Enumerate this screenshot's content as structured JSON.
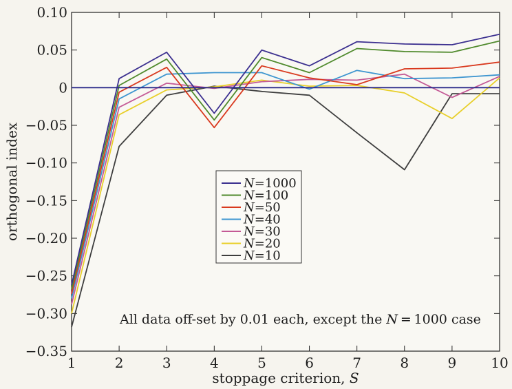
{
  "chart_data": {
    "type": "line",
    "title": "",
    "xlabel": "stoppage criterion, ",
    "xlabel_symbol": "S",
    "ylabel": "orthogonal index",
    "x": [
      1,
      2,
      3,
      4,
      5,
      6,
      7,
      8,
      9,
      10
    ],
    "xlim": [
      1,
      10
    ],
    "ylim": [
      -0.35,
      0.1
    ],
    "x_ticks": [
      "1",
      "2",
      "3",
      "4",
      "5",
      "6",
      "7",
      "8",
      "9",
      "10"
    ],
    "y_ticks": [
      {
        "value": 0.1,
        "label": "0.10"
      },
      {
        "value": 0.05,
        "label": "0.05"
      },
      {
        "value": 0,
        "label": "0"
      },
      {
        "value": -0.05,
        "label": "−0.05"
      },
      {
        "value": -0.1,
        "label": "−0.10"
      },
      {
        "value": -0.15,
        "label": "−0.15"
      },
      {
        "value": -0.2,
        "label": "−0.20"
      },
      {
        "value": -0.25,
        "label": "−0.25"
      },
      {
        "value": -0.3,
        "label": "−0.30"
      },
      {
        "value": -0.35,
        "label": "−0.35"
      }
    ],
    "grid": false,
    "legend_position": "center-left",
    "legend_symbol": "N",
    "series": [
      {
        "name": "=1000",
        "color": "#3b2f8f",
        "values": [
          -0.262,
          0.012,
          0.047,
          -0.034,
          0.05,
          0.029,
          0.061,
          0.058,
          0.057,
          0.071
        ]
      },
      {
        "name": "=100",
        "color": "#4f8a2c",
        "values": [
          -0.268,
          0.003,
          0.038,
          -0.043,
          0.04,
          0.02,
          0.052,
          0.048,
          0.047,
          0.062
        ]
      },
      {
        "name": "=50",
        "color": "#d9391e",
        "values": [
          -0.274,
          -0.006,
          0.027,
          -0.053,
          0.029,
          0.013,
          0.004,
          0.025,
          0.026,
          0.034
        ]
      },
      {
        "name": "=40",
        "color": "#3d95d0",
        "values": [
          -0.28,
          -0.015,
          0.018,
          0.02,
          0.02,
          -0.002,
          0.023,
          0.012,
          0.013,
          0.017
        ]
      },
      {
        "name": "=30",
        "color": "#c45a96",
        "values": [
          -0.288,
          -0.026,
          0.006,
          -0.001,
          0.008,
          0.011,
          0.01,
          0.018,
          -0.013,
          0.015
        ]
      },
      {
        "name": "=20",
        "color": "#e8cf2a",
        "values": [
          -0.3,
          -0.036,
          -0.003,
          0.001,
          0.01,
          0.002,
          0.003,
          -0.007,
          -0.041,
          0.013
        ]
      },
      {
        "name": "=10",
        "color": "#3e3e3e",
        "values": [
          -0.318,
          -0.078,
          -0.01,
          0.002,
          -0.005,
          -0.01,
          -0.06,
          -0.109,
          -0.008,
          -0.008
        ]
      }
    ],
    "reference_line": {
      "y": 0,
      "color": "#2c2a8a"
    },
    "annotation": {
      "prefix": "All data off-set by 0.01 each, except the ",
      "symbol": "N",
      "suffix": " = 1000 case"
    }
  }
}
